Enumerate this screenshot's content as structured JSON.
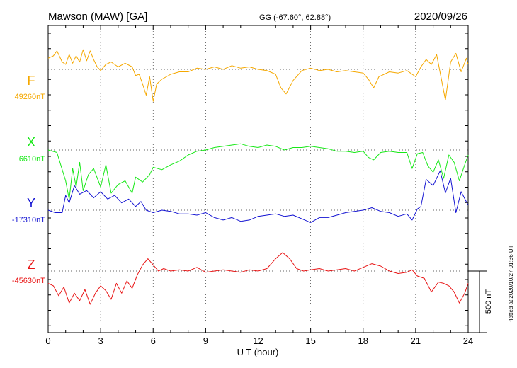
{
  "header": {
    "station": "Mawson (MAW)  [GA]",
    "coords": "GG (-67.60°,  62.88°)",
    "date": "2020/09/26"
  },
  "plotted_note": "Plotted at 2020/10/27 01:36 UT",
  "scale_label": "500 nT",
  "chart_data": {
    "type": "line",
    "xlabel": "U T (hour)",
    "x_ticks": [
      0,
      3,
      6,
      9,
      12,
      15,
      18,
      21,
      24
    ],
    "xlim": [
      0,
      24
    ],
    "scale_bar_nT": 500,
    "series": [
      {
        "name": "F",
        "baseline_label": "49260nT",
        "baseline_nT": 49260,
        "color": "#f5a800",
        "points": [
          [
            0,
            90
          ],
          [
            0.3,
            110
          ],
          [
            0.5,
            150
          ],
          [
            0.8,
            60
          ],
          [
            1.0,
            40
          ],
          [
            1.2,
            120
          ],
          [
            1.4,
            50
          ],
          [
            1.6,
            110
          ],
          [
            1.8,
            60
          ],
          [
            2.0,
            160
          ],
          [
            2.2,
            70
          ],
          [
            2.4,
            150
          ],
          [
            2.6,
            80
          ],
          [
            2.8,
            20
          ],
          [
            3.0,
            -10
          ],
          [
            3.3,
            40
          ],
          [
            3.6,
            60
          ],
          [
            4.0,
            20
          ],
          [
            4.4,
            50
          ],
          [
            4.8,
            20
          ],
          [
            5.0,
            -50
          ],
          [
            5.2,
            -40
          ],
          [
            5.4,
            -120
          ],
          [
            5.6,
            -210
          ],
          [
            5.8,
            -60
          ],
          [
            6.0,
            -260
          ],
          [
            6.2,
            -120
          ],
          [
            6.5,
            -80
          ],
          [
            7.0,
            -40
          ],
          [
            7.5,
            -20
          ],
          [
            8.0,
            -20
          ],
          [
            8.5,
            10
          ],
          [
            9.0,
            0
          ],
          [
            9.5,
            20
          ],
          [
            10.0,
            0
          ],
          [
            10.5,
            30
          ],
          [
            11.0,
            10
          ],
          [
            11.5,
            20
          ],
          [
            12.0,
            0
          ],
          [
            12.5,
            -10
          ],
          [
            13.0,
            -40
          ],
          [
            13.3,
            -150
          ],
          [
            13.6,
            -200
          ],
          [
            14.0,
            -90
          ],
          [
            14.5,
            -10
          ],
          [
            15.0,
            10
          ],
          [
            15.5,
            -10
          ],
          [
            16.0,
            0
          ],
          [
            16.5,
            -20
          ],
          [
            17.0,
            -10
          ],
          [
            17.5,
            -20
          ],
          [
            18.0,
            -30
          ],
          [
            18.3,
            -80
          ],
          [
            18.6,
            -150
          ],
          [
            18.9,
            -60
          ],
          [
            19.5,
            -20
          ],
          [
            20.0,
            -30
          ],
          [
            20.5,
            -10
          ],
          [
            21.0,
            -60
          ],
          [
            21.3,
            20
          ],
          [
            21.6,
            80
          ],
          [
            21.9,
            40
          ],
          [
            22.2,
            120
          ],
          [
            22.5,
            -100
          ],
          [
            22.7,
            -250
          ],
          [
            23.0,
            60
          ],
          [
            23.3,
            130
          ],
          [
            23.6,
            -20
          ],
          [
            23.9,
            90
          ],
          [
            24.0,
            40
          ]
        ]
      },
      {
        "name": "X",
        "baseline_label": "6610nT",
        "baseline_nT": 6610,
        "color": "#17e817",
        "points": [
          [
            0,
            0
          ],
          [
            0.5,
            -20
          ],
          [
            1.0,
            -250
          ],
          [
            1.2,
            -400
          ],
          [
            1.4,
            -150
          ],
          [
            1.6,
            -300
          ],
          [
            1.8,
            -100
          ],
          [
            2.0,
            -330
          ],
          [
            2.3,
            -200
          ],
          [
            2.6,
            -150
          ],
          [
            3.0,
            -300
          ],
          [
            3.3,
            -120
          ],
          [
            3.6,
            -350
          ],
          [
            4.0,
            -280
          ],
          [
            4.4,
            -250
          ],
          [
            4.8,
            -350
          ],
          [
            5.0,
            -220
          ],
          [
            5.4,
            -260
          ],
          [
            5.8,
            -200
          ],
          [
            6.0,
            -140
          ],
          [
            6.5,
            -160
          ],
          [
            7.0,
            -120
          ],
          [
            7.5,
            -90
          ],
          [
            8.0,
            -40
          ],
          [
            8.5,
            -10
          ],
          [
            9.0,
            0
          ],
          [
            9.5,
            20
          ],
          [
            10.0,
            30
          ],
          [
            10.5,
            40
          ],
          [
            11.0,
            50
          ],
          [
            11.5,
            30
          ],
          [
            12.0,
            20
          ],
          [
            12.5,
            40
          ],
          [
            13.0,
            30
          ],
          [
            13.5,
            0
          ],
          [
            14.0,
            20
          ],
          [
            14.5,
            20
          ],
          [
            15.0,
            30
          ],
          [
            15.5,
            20
          ],
          [
            16.0,
            10
          ],
          [
            16.5,
            -10
          ],
          [
            17.0,
            -10
          ],
          [
            17.5,
            -20
          ],
          [
            18.0,
            -10
          ],
          [
            18.3,
            -60
          ],
          [
            18.6,
            -80
          ],
          [
            19.0,
            -20
          ],
          [
            19.5,
            -10
          ],
          [
            20.0,
            -20
          ],
          [
            20.5,
            -20
          ],
          [
            20.8,
            -150
          ],
          [
            21.1,
            -30
          ],
          [
            21.4,
            -20
          ],
          [
            21.7,
            -130
          ],
          [
            22.0,
            -180
          ],
          [
            22.3,
            -80
          ],
          [
            22.6,
            -230
          ],
          [
            22.9,
            -40
          ],
          [
            23.2,
            -100
          ],
          [
            23.5,
            -250
          ],
          [
            23.8,
            -120
          ],
          [
            24.0,
            -40
          ]
        ]
      },
      {
        "name": "Y",
        "baseline_label": "-17310nT",
        "baseline_nT": -17310,
        "color": "#1414d2",
        "points": [
          [
            0,
            0
          ],
          [
            0.4,
            -20
          ],
          [
            0.8,
            -20
          ],
          [
            1.0,
            120
          ],
          [
            1.2,
            60
          ],
          [
            1.5,
            200
          ],
          [
            1.8,
            130
          ],
          [
            2.2,
            160
          ],
          [
            2.6,
            100
          ],
          [
            3.0,
            150
          ],
          [
            3.4,
            90
          ],
          [
            3.8,
            120
          ],
          [
            4.2,
            60
          ],
          [
            4.6,
            90
          ],
          [
            5.0,
            30
          ],
          [
            5.3,
            70
          ],
          [
            5.6,
            0
          ],
          [
            6.0,
            -20
          ],
          [
            6.5,
            0
          ],
          [
            7.0,
            -10
          ],
          [
            7.5,
            -30
          ],
          [
            8.0,
            -30
          ],
          [
            8.5,
            -40
          ],
          [
            9.0,
            -20
          ],
          [
            9.5,
            -60
          ],
          [
            10.0,
            -80
          ],
          [
            10.5,
            -60
          ],
          [
            11.0,
            -90
          ],
          [
            11.5,
            -80
          ],
          [
            12.0,
            -50
          ],
          [
            12.5,
            -40
          ],
          [
            13.0,
            -30
          ],
          [
            13.5,
            -50
          ],
          [
            14.0,
            -40
          ],
          [
            14.5,
            -70
          ],
          [
            15.0,
            -100
          ],
          [
            15.5,
            -60
          ],
          [
            16.0,
            -60
          ],
          [
            16.5,
            -40
          ],
          [
            17.0,
            -20
          ],
          [
            17.5,
            -10
          ],
          [
            18.0,
            0
          ],
          [
            18.5,
            20
          ],
          [
            19.0,
            -10
          ],
          [
            19.5,
            -20
          ],
          [
            20.0,
            -50
          ],
          [
            20.5,
            -30
          ],
          [
            20.8,
            -80
          ],
          [
            21.1,
            10
          ],
          [
            21.3,
            30
          ],
          [
            21.6,
            250
          ],
          [
            22.0,
            200
          ],
          [
            22.4,
            320
          ],
          [
            22.7,
            140
          ],
          [
            23.0,
            260
          ],
          [
            23.3,
            -20
          ],
          [
            23.6,
            150
          ],
          [
            24.0,
            40
          ]
        ]
      },
      {
        "name": "Z",
        "baseline_label": "-45630nT",
        "baseline_nT": -45630,
        "color": "#e81414",
        "points": [
          [
            0,
            -100
          ],
          [
            0.3,
            -120
          ],
          [
            0.6,
            -200
          ],
          [
            0.9,
            -130
          ],
          [
            1.2,
            -260
          ],
          [
            1.5,
            -180
          ],
          [
            1.8,
            -240
          ],
          [
            2.1,
            -150
          ],
          [
            2.4,
            -270
          ],
          [
            2.7,
            -180
          ],
          [
            3.0,
            -120
          ],
          [
            3.3,
            -160
          ],
          [
            3.6,
            -230
          ],
          [
            3.9,
            -100
          ],
          [
            4.2,
            -180
          ],
          [
            4.5,
            -80
          ],
          [
            4.8,
            -140
          ],
          [
            5.1,
            -30
          ],
          [
            5.4,
            50
          ],
          [
            5.7,
            100
          ],
          [
            6.0,
            50
          ],
          [
            6.3,
            0
          ],
          [
            6.6,
            20
          ],
          [
            7.0,
            0
          ],
          [
            7.5,
            10
          ],
          [
            8.0,
            0
          ],
          [
            8.5,
            30
          ],
          [
            9.0,
            -10
          ],
          [
            9.5,
            0
          ],
          [
            10.0,
            10
          ],
          [
            10.5,
            0
          ],
          [
            11.0,
            -10
          ],
          [
            11.5,
            10
          ],
          [
            12.0,
            0
          ],
          [
            12.5,
            20
          ],
          [
            13.0,
            100
          ],
          [
            13.4,
            150
          ],
          [
            13.8,
            100
          ],
          [
            14.2,
            20
          ],
          [
            14.6,
            0
          ],
          [
            15.0,
            10
          ],
          [
            15.5,
            20
          ],
          [
            16.0,
            0
          ],
          [
            16.5,
            10
          ],
          [
            17.0,
            20
          ],
          [
            17.5,
            0
          ],
          [
            18.0,
            30
          ],
          [
            18.5,
            60
          ],
          [
            19.0,
            40
          ],
          [
            19.5,
            0
          ],
          [
            20.0,
            -20
          ],
          [
            20.5,
            -10
          ],
          [
            20.8,
            10
          ],
          [
            21.1,
            -40
          ],
          [
            21.5,
            -60
          ],
          [
            21.9,
            -170
          ],
          [
            22.3,
            -90
          ],
          [
            22.6,
            -100
          ],
          [
            22.9,
            -120
          ],
          [
            23.2,
            -170
          ],
          [
            23.5,
            -260
          ],
          [
            23.8,
            -180
          ],
          [
            24.0,
            -100
          ]
        ]
      }
    ]
  }
}
